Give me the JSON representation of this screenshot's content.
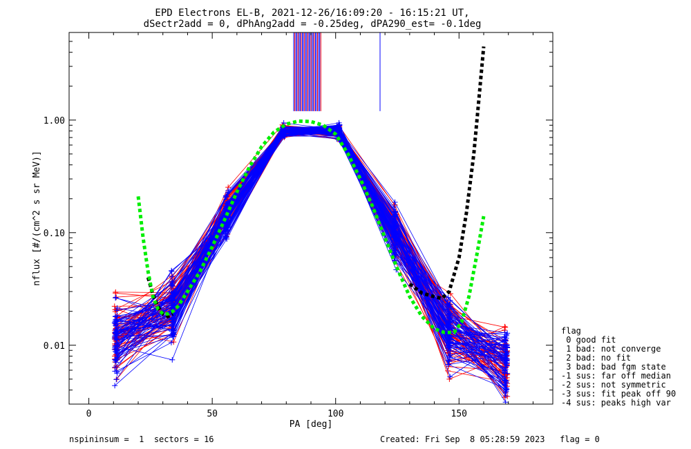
{
  "chart_data": {
    "type": "line",
    "title": "EPD Electrons EL-B, 2021-12-26/16:09:20 - 16:15:21 UT,",
    "subtitle": "dSectr2add = 0, dPhAng2add = -0.25deg, dPA290_est=  -0.1deg",
    "xlabel": "PA [deg]",
    "ylabel": "nflux [#/(cm^2 s sr MeV)]",
    "xlim": [
      -8,
      188
    ],
    "ylim": [
      0.003,
      6.0
    ],
    "yscale": "log",
    "x_ticks": [
      {
        "v": 0,
        "t": "0"
      },
      {
        "v": 50,
        "t": "50"
      },
      {
        "v": 100,
        "t": "100"
      },
      {
        "v": 150,
        "t": "150"
      }
    ],
    "y_ticks": [
      {
        "v": 0.01,
        "t": "0.01"
      },
      {
        "v": 0.1,
        "t": "0.10"
      },
      {
        "v": 1.0,
        "t": "1.00"
      }
    ],
    "sector_pa": [
      11,
      34,
      56,
      79,
      101,
      124,
      146,
      169
    ],
    "series_colors": {
      "red": "#ff0000",
      "blue": "#0000ff",
      "fit_green": "#00ee00",
      "fit_black": "#000000"
    },
    "profiles_shape": {
      "red_count": 60,
      "blue_count": 70,
      "reference": [
        0.012,
        0.02,
        0.15,
        0.8,
        0.8,
        0.1,
        0.013,
        0.007
      ]
    },
    "fit_green": {
      "x": [
        20,
        22,
        24,
        26,
        28,
        30,
        32,
        34,
        36,
        40,
        45,
        50,
        55,
        60,
        65,
        70,
        75,
        80,
        85,
        90,
        95,
        100,
        105,
        110,
        115,
        120,
        125,
        130,
        135,
        140,
        144,
        148,
        151,
        154,
        157,
        160
      ],
      "y": [
        0.21,
        0.09,
        0.045,
        0.027,
        0.021,
        0.019,
        0.019,
        0.02,
        0.022,
        0.03,
        0.045,
        0.075,
        0.13,
        0.23,
        0.38,
        0.58,
        0.78,
        0.92,
        0.98,
        0.97,
        0.9,
        0.75,
        0.5,
        0.3,
        0.17,
        0.09,
        0.048,
        0.027,
        0.018,
        0.014,
        0.013,
        0.013,
        0.016,
        0.027,
        0.06,
        0.14
      ]
    },
    "fit_black": {
      "x": [
        24,
        26,
        28,
        30,
        32,
        34,
        130,
        135,
        140,
        143,
        146,
        150,
        153,
        156,
        158,
        160
      ],
      "y": [
        0.04,
        0.028,
        0.022,
        0.019,
        0.018,
        0.019,
        0.035,
        0.029,
        0.027,
        0.026,
        0.03,
        0.06,
        0.15,
        0.5,
        1.5,
        4.5
      ]
    },
    "spikes": {
      "x_start": 83,
      "x_end": 94,
      "count": 26,
      "y_bottom": 1.2,
      "isolated_x": 118
    },
    "legend": {
      "placement": "right",
      "title": "flag",
      "items": [
        " 0 good fit",
        " 1 bad: not converge",
        " 2 bad: no fit",
        " 3 bad: bad fgm state",
        "-1 sus: far off median",
        "-2 sus: not symmetric",
        "-3 sus: fit peak off 90",
        "-4 sus: peaks high var"
      ]
    }
  },
  "footer": {
    "left": "nspininsum =  1  sectors = 16",
    "right": "Created: Fri Sep  8 05:28:59 2023   flag = 0"
  }
}
